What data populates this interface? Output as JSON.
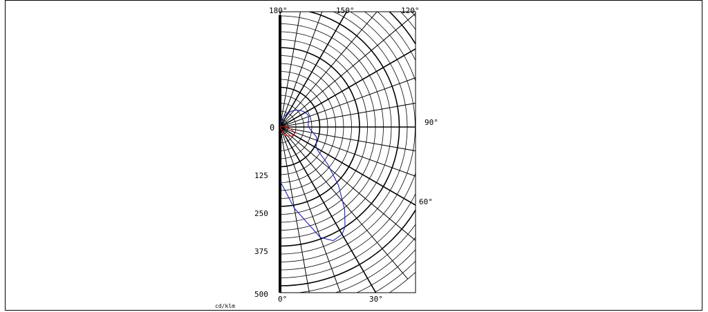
{
  "chart_data": {
    "type": "polar",
    "unit_label": "cd/klm",
    "center_label": "0",
    "radial_tick_labels": [
      "125",
      "250",
      "375",
      "500"
    ],
    "radial_ticks": [
      125,
      250,
      375,
      500
    ],
    "r_max": 500,
    "angle_labels": [
      "0°",
      "30°",
      "60°",
      "90°",
      "120°",
      "150°",
      "180°"
    ],
    "angle_ticks": [
      0,
      30,
      60,
      90,
      120,
      150,
      180
    ],
    "angle_step_minor": 10,
    "radial_step_minor": 25,
    "series": [
      {
        "color": "#1f1fb4",
        "points": [
          [
            0,
            170
          ],
          [
            10,
            260
          ],
          [
            20,
            370
          ],
          [
            25,
            395
          ],
          [
            30,
            390
          ],
          [
            33,
            375
          ],
          [
            38,
            330
          ],
          [
            45,
            260
          ],
          [
            52,
            190
          ],
          [
            56,
            155
          ],
          [
            58,
            140
          ],
          [
            61,
            130
          ],
          [
            66,
            125
          ],
          [
            71,
            122
          ],
          [
            75,
            118
          ],
          [
            80,
            106
          ],
          [
            86,
            95
          ],
          [
            90,
            90
          ],
          [
            94,
            89
          ],
          [
            100,
            90
          ],
          [
            106,
            94
          ],
          [
            113,
            96
          ],
          [
            120,
            92
          ],
          [
            128,
            84
          ],
          [
            136,
            74
          ],
          [
            144,
            62
          ],
          [
            152,
            48
          ],
          [
            160,
            34
          ],
          [
            170,
            18
          ],
          [
            180,
            5
          ]
        ]
      },
      {
        "color": "#e01010",
        "points": [
          [
            0,
            0
          ],
          [
            30,
            30
          ],
          [
            50,
            45
          ],
          [
            58,
            50
          ],
          [
            65,
            50
          ],
          [
            72,
            44
          ],
          [
            78,
            36
          ],
          [
            85,
            26
          ],
          [
            92,
            18
          ],
          [
            100,
            10
          ],
          [
            115,
            5
          ],
          [
            140,
            3
          ],
          [
            180,
            0
          ]
        ]
      }
    ]
  }
}
